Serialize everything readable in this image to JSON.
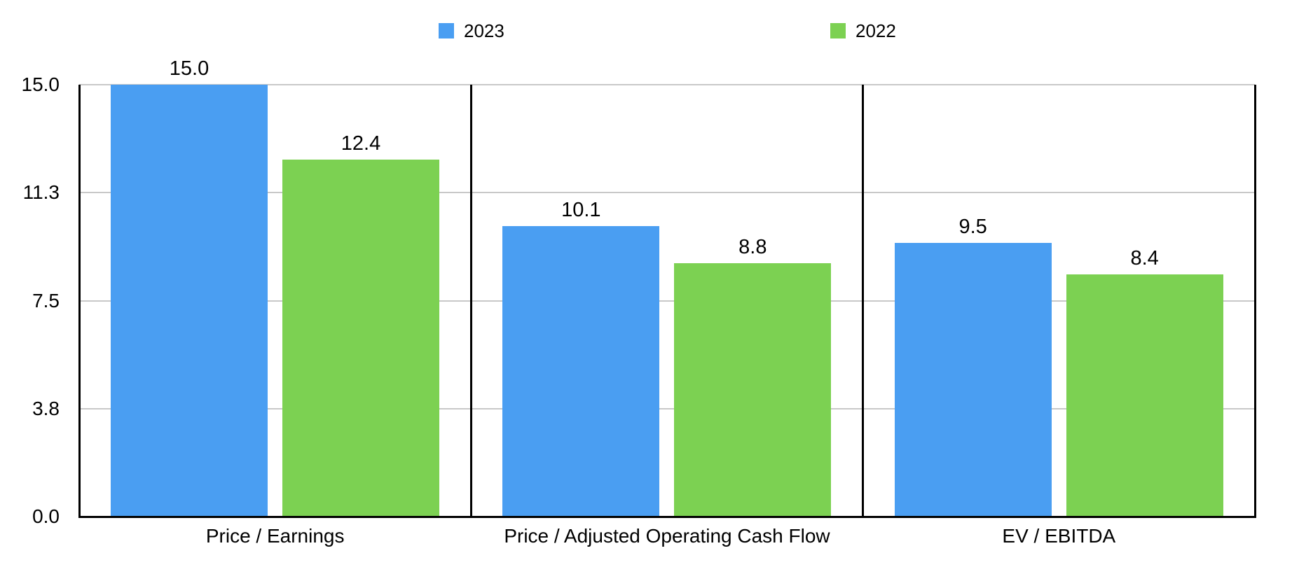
{
  "legend": {
    "items": [
      {
        "label": "2023",
        "color": "#4A9EF2"
      },
      {
        "label": "2022",
        "color": "#7CD152"
      }
    ]
  },
  "chart_data": {
    "type": "bar",
    "title": "",
    "categories": [
      "Price / Earnings",
      "Price / Adjusted Operating Cash Flow",
      "EV / EBITDA"
    ],
    "series": [
      {
        "name": "2023",
        "color": "#4A9EF2",
        "values": [
          15.0,
          10.1,
          9.5
        ],
        "labels": [
          "15.0",
          "10.1",
          "9.5"
        ]
      },
      {
        "name": "2022",
        "color": "#7CD152",
        "values": [
          12.4,
          8.8,
          8.4
        ],
        "labels": [
          "12.4",
          "8.8",
          "8.4"
        ]
      }
    ],
    "ylim": [
      0,
      15
    ],
    "yticks": [
      {
        "value": 0,
        "label": "0.0"
      },
      {
        "value": 3.75,
        "label": "3.8"
      },
      {
        "value": 7.5,
        "label": "7.5"
      },
      {
        "value": 11.25,
        "label": "11.3"
      },
      {
        "value": 15,
        "label": "15.0"
      }
    ],
    "grid": true,
    "legend_position": "top"
  },
  "colors": {
    "axis": "#000000",
    "grid": "#c8c8c8",
    "background": "#ffffff",
    "text": "#000000"
  }
}
